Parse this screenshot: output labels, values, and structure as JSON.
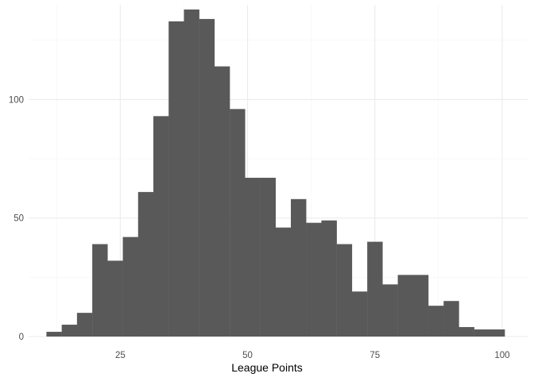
{
  "chart_data": {
    "type": "bar",
    "subtype": "histogram",
    "xlabel": "League Points",
    "ylabel": "",
    "title": "",
    "xlim": [
      7,
      105
    ],
    "ylim": [
      0,
      140
    ],
    "x_ticks": [
      25,
      50,
      75,
      100
    ],
    "x_minor_ticks": [
      12.5,
      37.5,
      62.5,
      87.5
    ],
    "y_ticks": [
      0,
      50,
      100
    ],
    "y_minor_ticks": [
      25,
      75,
      125
    ],
    "x_tick_labels": [
      "25",
      "50",
      "75",
      "100"
    ],
    "y_tick_labels": [
      "0",
      "50",
      "100"
    ],
    "grid": true,
    "legend": "none",
    "colors": {
      "bar": "#595959",
      "grid_major": "#ebebeb",
      "grid_minor": "#f5f5f5",
      "tick_text": "#4d4d4d",
      "background": "#ffffff"
    },
    "bins": [
      {
        "x0": 10.5,
        "x1": 13.5,
        "count": 2
      },
      {
        "x0": 13.5,
        "x1": 16.5,
        "count": 5
      },
      {
        "x0": 16.5,
        "x1": 19.5,
        "count": 10
      },
      {
        "x0": 19.5,
        "x1": 22.5,
        "count": 39
      },
      {
        "x0": 22.5,
        "x1": 25.5,
        "count": 32
      },
      {
        "x0": 25.5,
        "x1": 28.5,
        "count": 42
      },
      {
        "x0": 28.5,
        "x1": 31.5,
        "count": 61
      },
      {
        "x0": 31.5,
        "x1": 34.5,
        "count": 93
      },
      {
        "x0": 34.5,
        "x1": 37.5,
        "count": 133
      },
      {
        "x0": 37.5,
        "x1": 40.5,
        "count": 138
      },
      {
        "x0": 40.5,
        "x1": 43.5,
        "count": 134
      },
      {
        "x0": 43.5,
        "x1": 46.5,
        "count": 114
      },
      {
        "x0": 46.5,
        "x1": 49.5,
        "count": 96
      },
      {
        "x0": 49.5,
        "x1": 52.5,
        "count": 67
      },
      {
        "x0": 52.5,
        "x1": 55.5,
        "count": 67
      },
      {
        "x0": 55.5,
        "x1": 58.5,
        "count": 46
      },
      {
        "x0": 58.5,
        "x1": 61.5,
        "count": 58
      },
      {
        "x0": 61.5,
        "x1": 64.5,
        "count": 48
      },
      {
        "x0": 64.5,
        "x1": 67.5,
        "count": 49
      },
      {
        "x0": 67.5,
        "x1": 70.5,
        "count": 39
      },
      {
        "x0": 70.5,
        "x1": 73.5,
        "count": 19
      },
      {
        "x0": 73.5,
        "x1": 76.5,
        "count": 40
      },
      {
        "x0": 76.5,
        "x1": 79.5,
        "count": 22
      },
      {
        "x0": 79.5,
        "x1": 82.5,
        "count": 26
      },
      {
        "x0": 82.5,
        "x1": 85.5,
        "count": 26
      },
      {
        "x0": 85.5,
        "x1": 88.5,
        "count": 13
      },
      {
        "x0": 88.5,
        "x1": 91.5,
        "count": 15
      },
      {
        "x0": 91.5,
        "x1": 94.5,
        "count": 4
      },
      {
        "x0": 94.5,
        "x1": 97.5,
        "count": 3
      },
      {
        "x0": 97.5,
        "x1": 100.5,
        "count": 3
      }
    ]
  }
}
